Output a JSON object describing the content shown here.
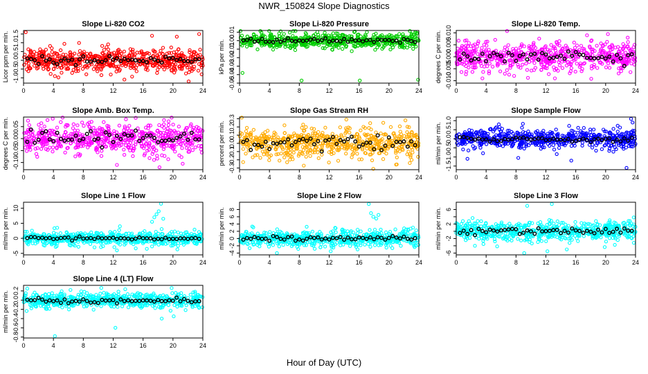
{
  "title": "NWR_150824  Slope Diagnostics",
  "xlabel": "Hour of Day (UTC)",
  "chart_data": [
    {
      "type": "scatter",
      "title": "Slope Li-820 CO2",
      "ylabel": "Licor ppm per min.",
      "color": "#ff0000",
      "xlim": [
        0,
        24
      ],
      "xticks": [
        0,
        4,
        8,
        12,
        16,
        20,
        24
      ],
      "ylim": [
        -1.3,
        1.7
      ],
      "yticks": [
        -1,
        -0.5,
        0,
        0.5,
        1,
        1.5
      ],
      "ytick_labels": [
        "-1.0",
        "-0.5",
        "0.0",
        "0.5",
        "1.0",
        "1.5"
      ],
      "spread": 0.35,
      "hourly_spread": 0.12,
      "outliers": [
        [
          0.3,
          1.6
        ],
        [
          4.2,
          -0.9
        ],
        [
          13.5,
          -1.1
        ],
        [
          17.2,
          1.4
        ],
        [
          23.5,
          1.5
        ],
        [
          22.1,
          -1.2
        ],
        [
          8.4,
          -0.8
        ]
      ]
    },
    {
      "type": "scatter",
      "title": "Slope Li-820 Pressure",
      "ylabel": "kPa per min.",
      "color": "#00cc00",
      "xlim": [
        0,
        24
      ],
      "xticks": [
        0,
        4,
        8,
        12,
        16,
        20,
        24
      ],
      "ylim": [
        -0.05,
        0.012
      ],
      "yticks": [
        -0.05,
        -0.04,
        -0.03,
        -0.02,
        -0.01,
        0,
        0.01
      ],
      "ytick_labels": [
        "-0.05",
        "-0.04",
        "-0.03",
        "-0.02",
        "-0.01",
        "0.00",
        "0.01"
      ],
      "spread": 0.005,
      "hourly_spread": 0.002,
      "outliers": [
        [
          8.3,
          -0.047
        ],
        [
          16.1,
          -0.047
        ],
        [
          23.9,
          -0.046
        ],
        [
          5.5,
          0.011
        ],
        [
          7.2,
          0.012
        ],
        [
          0.4,
          -0.038
        ]
      ]
    },
    {
      "type": "scatter",
      "title": "Slope Li-820 Temp.",
      "ylabel": "degrees C per min.",
      "color": "#ff00ff",
      "xlim": [
        0,
        24
      ],
      "xticks": [
        0,
        4,
        8,
        12,
        16,
        20,
        24
      ],
      "ylim": [
        -0.011,
        0.011
      ],
      "yticks": [
        -0.01,
        -0.005,
        0,
        0.005,
        0.01
      ],
      "ytick_labels": [
        "-0.010",
        "-0.005",
        "0.000",
        "0.005",
        "0.010"
      ],
      "spread": 0.0035,
      "hourly_spread": 0.0015,
      "outliers": [
        [
          6.8,
          0.011
        ],
        [
          13.2,
          -0.009
        ],
        [
          17.5,
          0.009
        ],
        [
          3.5,
          -0.009
        ],
        [
          20.3,
          0.0095
        ],
        [
          9.6,
          -0.0088
        ]
      ]
    },
    {
      "type": "scatter",
      "title": "Slope Amb. Box Temp.",
      "ylabel": "degrees C per min.",
      "color": "#ff00ff",
      "xlim": [
        0,
        24
      ],
      "xticks": [
        0,
        4,
        8,
        12,
        16,
        20,
        24
      ],
      "ylim": [
        -0.13,
        0.09
      ],
      "yticks": [
        -0.1,
        -0.05,
        0,
        0.05
      ],
      "ytick_labels": [
        "-0.10",
        "-0.05",
        "0.00",
        "0.05"
      ],
      "spread": 0.035,
      "hourly_spread": 0.02,
      "outliers": [
        [
          0.6,
          0.075
        ],
        [
          12.5,
          -0.11
        ],
        [
          18.2,
          -0.12
        ],
        [
          9.1,
          0.07
        ],
        [
          21.3,
          -0.105
        ]
      ]
    },
    {
      "type": "scatter",
      "title": "Slope Gas Stream RH",
      "ylabel": "percent per min.",
      "color": "#ffaa00",
      "xlim": [
        0,
        24
      ],
      "xticks": [
        0,
        4,
        8,
        12,
        16,
        20,
        24
      ],
      "ylim": [
        -0.32,
        0.32
      ],
      "yticks": [
        -0.3,
        -0.2,
        -0.1,
        0,
        0.1,
        0.2,
        0.3
      ],
      "ytick_labels": [
        "-0.3",
        "-0.2",
        "-0.1",
        "0.0",
        "0.1",
        "0.2",
        "0.3"
      ],
      "spread": 0.1,
      "hourly_spread": 0.06,
      "outliers": [
        [
          0.3,
          0.32
        ],
        [
          17.9,
          -0.31
        ],
        [
          14.3,
          0.29
        ],
        [
          8.6,
          -0.27
        ],
        [
          22.2,
          0.28
        ]
      ]
    },
    {
      "type": "scatter",
      "title": "Slope Sample Flow",
      "ylabel": "ml/min per min.",
      "color": "#0000ff",
      "xlim": [
        0,
        24
      ],
      "xticks": [
        0,
        4,
        8,
        12,
        16,
        20,
        24
      ],
      "ylim": [
        -1.7,
        1.2
      ],
      "yticks": [
        -1.5,
        -1,
        -0.5,
        0,
        0.5,
        1
      ],
      "ytick_labels": [
        "-1.5",
        "-1.0",
        "-0.5",
        "0.0",
        "0.5",
        "1.0"
      ],
      "spread": 0.3,
      "hourly_spread": 0.1,
      "outliers": [
        [
          23.4,
          1.1
        ],
        [
          23.6,
          0.9
        ],
        [
          22.8,
          -1.6
        ],
        [
          1.5,
          -1.1
        ],
        [
          5.7,
          0.8
        ],
        [
          8.3,
          -1.05
        ],
        [
          15.4,
          -1.2
        ]
      ]
    },
    {
      "type": "scatter",
      "title": "Slope Line 1 Flow",
      "ylabel": "ml/min per min.",
      "color": "#00ffff",
      "xlim": [
        0,
        24
      ],
      "xticks": [
        0,
        4,
        8,
        12,
        16,
        20,
        24
      ],
      "ylim": [
        -5.5,
        12
      ],
      "yticks": [
        -5,
        0,
        5,
        10
      ],
      "ytick_labels": [
        "-5",
        "0",
        "5",
        "10"
      ],
      "spread": 1.2,
      "hourly_spread": 0.3,
      "outliers": [
        [
          17.5,
          7
        ],
        [
          17.8,
          8
        ],
        [
          18.1,
          9
        ],
        [
          18.4,
          11.5
        ],
        [
          18.7,
          6.5
        ],
        [
          17.2,
          5.5
        ],
        [
          9.5,
          -3
        ],
        [
          12.5,
          -4
        ],
        [
          16.5,
          -3.5
        ],
        [
          4.5,
          3.5
        ],
        [
          12.9,
          4
        ]
      ]
    },
    {
      "type": "scatter",
      "title": "Slope Line 2 Flow",
      "ylabel": "ml/min per min.",
      "color": "#00ffff",
      "xlim": [
        0,
        24
      ],
      "xticks": [
        0,
        4,
        8,
        12,
        16,
        20,
        24
      ],
      "ylim": [
        -4.5,
        10
      ],
      "yticks": [
        -4,
        -2,
        0,
        2,
        4,
        6,
        8
      ],
      "ytick_labels": [
        "-4",
        "-2",
        "0",
        "2",
        "4",
        "6",
        "8"
      ],
      "spread": 1.2,
      "hourly_spread": 0.4,
      "outliers": [
        [
          17.3,
          9.5
        ],
        [
          17.6,
          7
        ],
        [
          17.9,
          6
        ],
        [
          18.3,
          5.5
        ],
        [
          18.6,
          6.5
        ],
        [
          5,
          -4
        ],
        [
          12.2,
          -3.5
        ],
        [
          15.8,
          -3
        ]
      ]
    },
    {
      "type": "scatter",
      "title": "Slope Line 3 Flow",
      "ylabel": "ml/min per min.",
      "color": "#00ffff",
      "xlim": [
        0,
        24
      ],
      "xticks": [
        0,
        4,
        8,
        12,
        16,
        20,
        24
      ],
      "ylim": [
        -6.5,
        8
      ],
      "yticks": [
        -6,
        -4,
        -2,
        0,
        2,
        4,
        6
      ],
      "ytick_labels": [
        "-6",
        "-2",
        "2",
        "6"
      ],
      "spread": 1.5,
      "hourly_spread": 0.6,
      "outliers": [
        [
          9.5,
          7
        ],
        [
          12.8,
          7.5
        ],
        [
          12.2,
          -5.5
        ],
        [
          9.1,
          -6
        ],
        [
          14.8,
          -5
        ],
        [
          2.5,
          -4
        ]
      ]
    },
    {
      "type": "scatter",
      "title": "Slope Line 4 (LT) Flow",
      "ylabel": "ml/min per min.",
      "color": "#00ffff",
      "xlim": [
        0,
        24
      ],
      "xticks": [
        0,
        4,
        8,
        12,
        16,
        20,
        24
      ],
      "ylim": [
        -0.82,
        0.32
      ],
      "yticks": [
        -0.8,
        -0.6,
        -0.4,
        -0.2,
        0,
        0.2
      ],
      "ytick_labels": [
        "-0.8",
        "-0.6",
        "-0.4",
        "-0.2",
        "0.0",
        "0.2"
      ],
      "spread": 0.09,
      "hourly_spread": 0.04,
      "outliers": [
        [
          4.2,
          -0.78
        ],
        [
          12.3,
          -0.6
        ],
        [
          18.5,
          -0.4
        ],
        [
          0.5,
          0.25
        ],
        [
          20.1,
          -0.35
        ]
      ]
    }
  ]
}
